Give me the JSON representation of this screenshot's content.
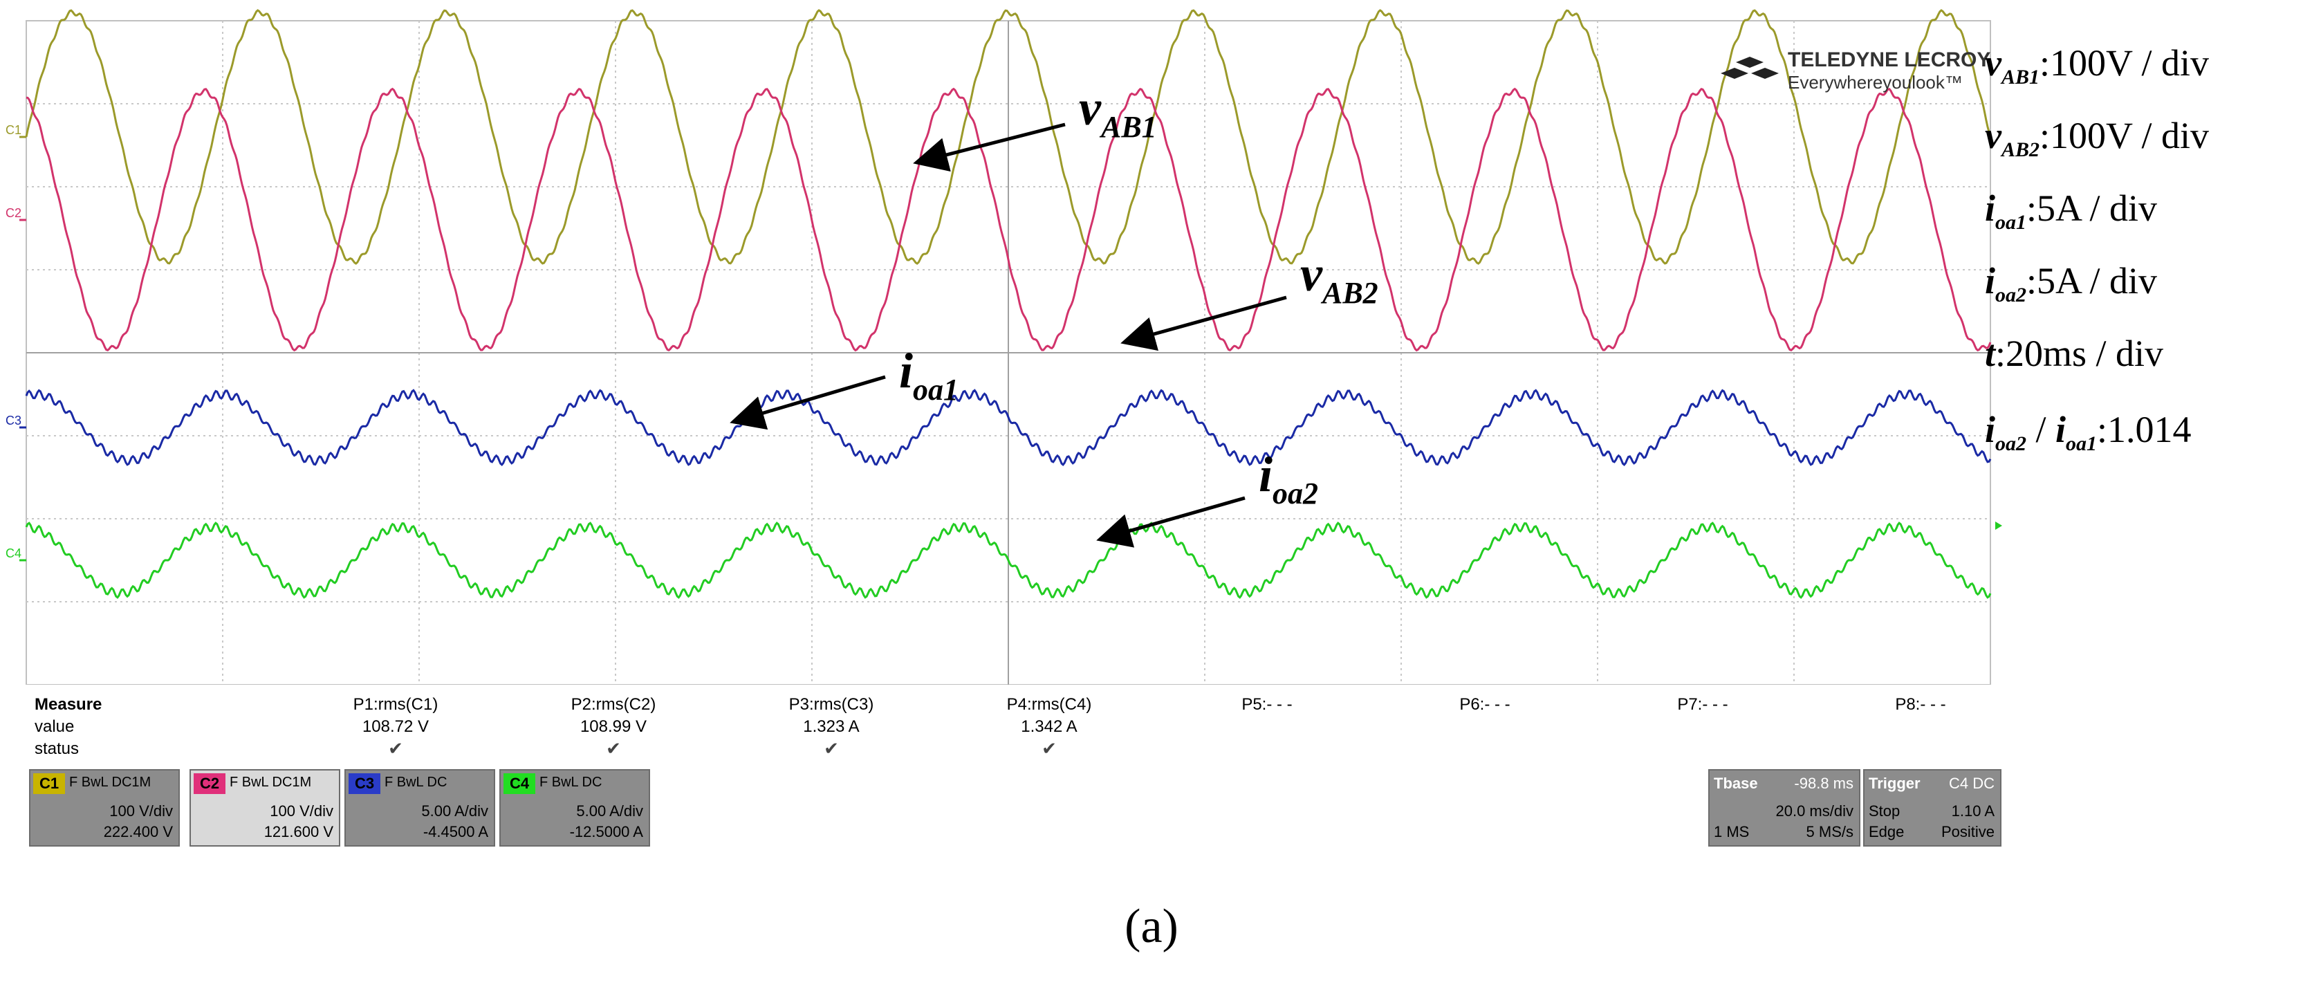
{
  "chart_data": {
    "type": "line",
    "title": "",
    "xlabel": "",
    "ylabel": "",
    "x_divisions": 10,
    "y_divisions": 8,
    "x_unit_per_div": "20ms",
    "series": [
      {
        "name": "C1",
        "label": "v_AB1",
        "color": "#9b9a2a",
        "amplitude_div": 1.5,
        "center_div": 2.6,
        "cycles": 10.5,
        "phase": 0.0,
        "ripple": 0.03
      },
      {
        "name": "C2",
        "label": "v_AB2",
        "color": "#d2336b",
        "amplitude_div": 1.55,
        "center_div": 1.6,
        "cycles": 10.5,
        "phase": 0.3,
        "ripple": 0.03
      },
      {
        "name": "C3",
        "label": "i_oa1",
        "color": "#1a2aa5",
        "amplitude_div": 0.4,
        "center_div": -0.9,
        "cycles": 10.5,
        "phase": 0.2,
        "ripple": 0.05
      },
      {
        "name": "C4",
        "label": "i_oa2",
        "color": "#22cc22",
        "amplitude_div": 0.4,
        "center_div": -2.5,
        "cycles": 10.5,
        "phase": 0.25,
        "ripple": 0.05
      }
    ],
    "trace_labels": [
      {
        "name": "C1",
        "text": "C1",
        "color": "#9b9a2a"
      },
      {
        "name": "C2",
        "text": "C2",
        "color": "#d2336b"
      },
      {
        "name": "C3",
        "text": "C3",
        "color": "#1a2aa5"
      },
      {
        "name": "C4",
        "text": "C4",
        "color": "#22cc22"
      }
    ],
    "annotations": [
      {
        "id": "vab1",
        "main": "v",
        "sub": "AB1"
      },
      {
        "id": "vab2",
        "main": "v",
        "sub": "AB2"
      },
      {
        "id": "ioa1",
        "main": "i",
        "sub": "oa1"
      },
      {
        "id": "ioa2",
        "main": "i",
        "sub": "oa2"
      }
    ]
  },
  "logo": {
    "brand": "TELEDYNE LECROY",
    "tagline": "Everywhereyoulook™"
  },
  "right_labels": [
    {
      "var": "v",
      "sub": "AB1",
      "rest": ":100V / div"
    },
    {
      "var": "v",
      "sub": "AB2",
      "rest": ":100V / div"
    },
    {
      "var": "i",
      "sub": "oa1",
      "rest": ":5A / div"
    },
    {
      "var": "i",
      "sub": "oa2",
      "rest": ":5A / div"
    },
    {
      "var": "t",
      "sub": "",
      "rest": ":20ms / div"
    },
    {
      "var": "i",
      "sub": "oa2",
      "rest": " / ",
      "var2": "i",
      "sub2": "oa1",
      "rest2": ":1.014"
    }
  ],
  "measure": {
    "title": "Measure",
    "row_value": "value",
    "row_status": "status",
    "params": [
      {
        "name": "P1:rms(C1)",
        "value": "108.72 V",
        "status": "✔"
      },
      {
        "name": "P2:rms(C2)",
        "value": "108.99 V",
        "status": "✔"
      },
      {
        "name": "P3:rms(C3)",
        "value": "1.323 A",
        "status": "✔"
      },
      {
        "name": "P4:rms(C4)",
        "value": "1.342 A",
        "status": "✔"
      },
      {
        "name": "P5:- - -",
        "value": "",
        "status": ""
      },
      {
        "name": "P6:- - -",
        "value": "",
        "status": ""
      },
      {
        "name": "P7:- - -",
        "value": "",
        "status": ""
      },
      {
        "name": "P8:- - -",
        "value": "",
        "status": ""
      }
    ]
  },
  "channels": [
    {
      "tag": "C1",
      "color": "#c8b400",
      "header": "F  BwL  DC1M",
      "vdiv": "100 V/div",
      "offset": "222.400 V"
    },
    {
      "tag": "C2",
      "color": "#e0307a",
      "header": "F  BwL  DC1M",
      "vdiv": "100 V/div",
      "offset": "121.600 V"
    },
    {
      "tag": "C3",
      "color": "#2a3cc8",
      "header": "F  BwL  DC",
      "vdiv": "5.00 A/div",
      "offset": "-4.4500 A"
    },
    {
      "tag": "C4",
      "color": "#22dd22",
      "header": "F  BwL  DC",
      "vdiv": "5.00 A/div",
      "offset": "-12.5000 A"
    }
  ],
  "timebase": {
    "title": "Tbase",
    "delay": "-98.8 ms",
    "tdiv": "20.0 ms/div",
    "points": "1 MS",
    "rate": "5 MS/s"
  },
  "trigger": {
    "title": "Trigger",
    "source": "C4  DC",
    "mode": "Stop",
    "level": "1.10 A",
    "type": "Edge",
    "slope": "Positive"
  },
  "caption": "(a)"
}
